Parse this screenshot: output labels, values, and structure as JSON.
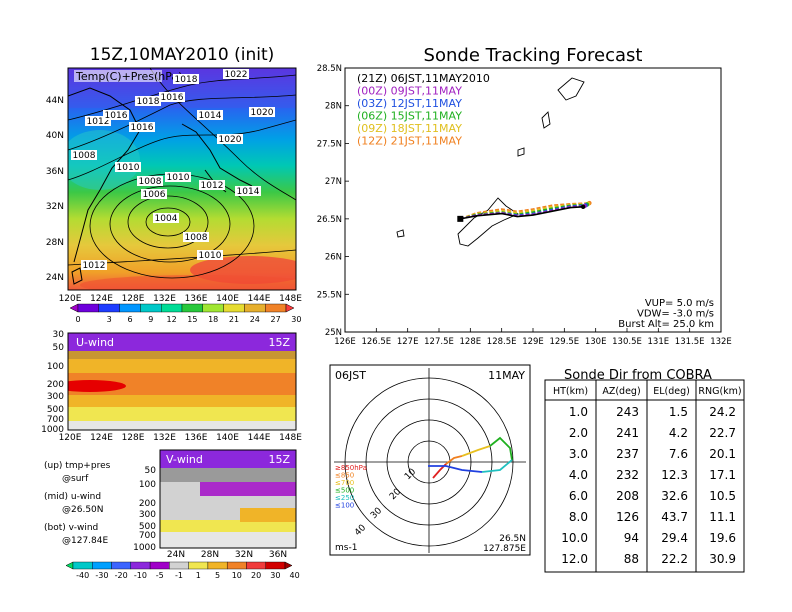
{
  "left": {
    "title": "15Z,10MAY2010 (init)",
    "map_label": "Temp(C)+Pres(hPa)",
    "map_lat_ticks": [
      "44N",
      "40N",
      "36N",
      "32N",
      "28N",
      "24N"
    ],
    "map_lon_ticks": [
      "120E",
      "124E",
      "128E",
      "132E",
      "136E",
      "140E",
      "144E",
      "148E"
    ],
    "isobar_labels": [
      "1022",
      "1020",
      "1012",
      "1018",
      "1016",
      "1016",
      "1014",
      "1020",
      "1008",
      "1010",
      "1008",
      "1010",
      "1012",
      "1006",
      "1014",
      "1004",
      "1008",
      "1010",
      "1012",
      "1018",
      "1016"
    ],
    "temp_colorbar": {
      "labels": [
        "0",
        "3",
        "6",
        "9",
        "12",
        "15",
        "18",
        "21",
        "24",
        "27",
        "30"
      ],
      "colors": [
        "#a000c8",
        "#6e00dc",
        "#1e3cff",
        "#0096ff",
        "#00c8c8",
        "#00dc96",
        "#28c83c",
        "#a0e632",
        "#e6dc32",
        "#e6af2d",
        "#f08228",
        "#fa3c3c"
      ]
    },
    "u_panel": {
      "label": "U-wind",
      "time": "15Z",
      "p_ticks": [
        "30",
        "50",
        "100",
        "200",
        "300",
        "500",
        "700",
        "1000"
      ],
      "lon_ticks": [
        "120E",
        "124E",
        "128E",
        "132E",
        "136E",
        "140E",
        "144E",
        "148E"
      ]
    },
    "v_panel": {
      "label": "V-wind",
      "time": "15Z",
      "p_ticks": [
        "50",
        "100",
        "200",
        "300",
        "500",
        "700",
        "1000"
      ],
      "lat_ticks": [
        "24N",
        "28N",
        "32N",
        "36N"
      ]
    },
    "legend": [
      {
        "line1": "(up) tmp+pres",
        "line2": "@surf"
      },
      {
        "line1": "(mid) u-wind",
        "line2": "@26.50N"
      },
      {
        "line1": "(bot) v-wind",
        "line2": "@127.84E"
      }
    ],
    "wind_colorbar": {
      "labels": [
        "-40",
        "-30",
        "-20",
        "-10",
        "-5",
        "-1",
        "1",
        "5",
        "10",
        "20",
        "30",
        "40"
      ],
      "colors": [
        "#00dc64",
        "#00c8c8",
        "#00a0ff",
        "#3c64ff",
        "#8c28dc",
        "#a000c8",
        "#d2d2d2",
        "#f0e650",
        "#f0b428",
        "#f08228",
        "#f03c3c",
        "#d20000",
        "#a00000"
      ]
    }
  },
  "right": {
    "title": "Sonde Tracking Forecast",
    "legend": [
      {
        "text": "(21Z) 06JST,11MAY2010",
        "color": "#000000"
      },
      {
        "text": "(00Z) 09JST,11MAY",
        "color": "#a020c0"
      },
      {
        "text": "(03Z) 12JST,11MAY",
        "color": "#2050e0"
      },
      {
        "text": "(06Z) 15JST,11MAY",
        "color": "#20b020"
      },
      {
        "text": "(09Z) 18JST,11MAY",
        "color": "#e0c020"
      },
      {
        "text": "(12Z) 21JST,11MAY",
        "color": "#f08020"
      }
    ],
    "params": [
      "VUP=  5.0  m/s",
      "VDW= -3.0  m/s",
      "Burst Alt=  25.0  km"
    ]
  },
  "polar": {
    "time_label": "06JST",
    "date_label": "11MAY",
    "range_labels": [
      "10",
      "20",
      "30",
      "40"
    ],
    "pressure_legend": [
      {
        "text": "≥850hPa",
        "color": "#e02020"
      },
      {
        "text": "≤850",
        "color": "#f08020"
      },
      {
        "text": "≤700",
        "color": "#e8c020"
      },
      {
        "text": "≤500",
        "color": "#20b020"
      },
      {
        "text": "≤250",
        "color": "#20c0c0"
      },
      {
        "text": "≤100",
        "color": "#2040e0"
      }
    ],
    "unit": "ms-1",
    "lat": "26.5N",
    "lon": "127.875E"
  },
  "table": {
    "title": "Sonde Dir from COBRA",
    "headers": [
      "HT(km)",
      "AZ(deg)",
      "EL(deg)",
      "RNG(km)"
    ],
    "rows": [
      [
        "1.0",
        "243",
        "1.5",
        "24.2"
      ],
      [
        "2.0",
        "241",
        "4.2",
        "22.7"
      ],
      [
        "3.0",
        "237",
        "7.6",
        "20.1"
      ],
      [
        "4.0",
        "232",
        "12.3",
        "17.1"
      ],
      [
        "6.0",
        "208",
        "32.6",
        "10.5"
      ],
      [
        "8.0",
        "126",
        "43.7",
        "11.1"
      ],
      [
        "10.0",
        "94",
        "29.4",
        "19.6"
      ],
      [
        "12.0",
        "88",
        "22.2",
        "30.9"
      ]
    ]
  },
  "chart_data": [
    {
      "type": "line",
      "title": "Sonde Tracking Forecast",
      "xlim": [
        126,
        132
      ],
      "ylim": [
        25,
        28.5
      ],
      "x_ticks": [
        "126E",
        "126.5E",
        "127E",
        "127.5E",
        "128E",
        "128.5E",
        "129E",
        "129.5E",
        "130E",
        "130.5E",
        "131E",
        "131.5E",
        "132E"
      ],
      "y_ticks": [
        "25N",
        "25.5N",
        "26N",
        "26.5N",
        "27N",
        "27.5N",
        "28N",
        "28.5N"
      ],
      "series": [
        {
          "name": "(21Z) 06JST,11MAY2010",
          "x": [
            127.84,
            128.1,
            128.5,
            128.75,
            129.0,
            129.3,
            129.6,
            129.8
          ],
          "y": [
            26.5,
            26.54,
            26.57,
            26.53,
            26.55,
            26.6,
            26.65,
            26.66
          ]
        },
        {
          "name": "(00Z) 09JST,11MAY",
          "x": [
            127.84,
            128.1,
            128.5,
            128.75,
            129.0,
            129.3,
            129.6,
            129.82
          ],
          "y": [
            26.5,
            26.55,
            26.58,
            26.54,
            26.56,
            26.61,
            26.66,
            26.67
          ]
        },
        {
          "name": "(03Z) 12JST,11MAY",
          "x": [
            127.84,
            128.1,
            128.5,
            128.75,
            129.0,
            129.3,
            129.6,
            129.84
          ],
          "y": [
            26.5,
            26.55,
            26.58,
            26.55,
            26.57,
            26.62,
            26.67,
            26.68
          ]
        },
        {
          "name": "(06Z) 15JST,11MAY",
          "x": [
            127.84,
            128.1,
            128.5,
            128.75,
            129.0,
            129.3,
            129.6,
            129.86
          ],
          "y": [
            26.5,
            26.56,
            26.59,
            26.56,
            26.59,
            26.64,
            26.68,
            26.69
          ]
        },
        {
          "name": "(09Z) 18JST,11MAY",
          "x": [
            127.84,
            128.1,
            128.5,
            128.75,
            129.0,
            129.3,
            129.6,
            129.88
          ],
          "y": [
            26.5,
            26.57,
            26.61,
            26.58,
            26.61,
            26.66,
            26.69,
            26.7
          ]
        },
        {
          "name": "(12Z) 21JST,11MAY",
          "x": [
            127.84,
            128.1,
            128.5,
            128.75,
            129.0,
            129.3,
            129.6,
            129.9
          ],
          "y": [
            26.5,
            26.58,
            26.63,
            26.6,
            26.63,
            26.68,
            26.7,
            26.71
          ]
        }
      ]
    }
  ]
}
